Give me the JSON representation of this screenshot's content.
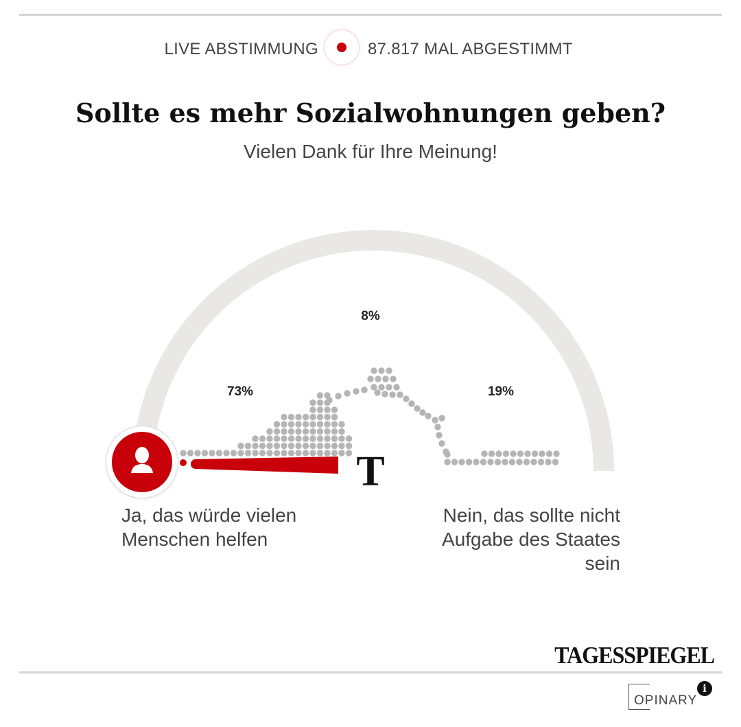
{
  "header": {
    "live_label": "LIVE ABSTIMMUNG",
    "votes_label": "87.817 MAL ABGESTIMMT"
  },
  "question": "Sollte es mehr Sozialwohnungen geben?",
  "subtitle": "Vielen Dank für Ihre Meinung!",
  "meter": {
    "results": [
      {
        "id": "left",
        "percent_label": "73%",
        "value": 73
      },
      {
        "id": "middle",
        "percent_label": "8%",
        "value": 8
      },
      {
        "id": "right",
        "percent_label": "19%",
        "value": 19
      }
    ],
    "center_marker": "T",
    "user_position": 0.42
  },
  "answers": {
    "left": "Ja, das würde vielen Menschen helfen",
    "right": "Nein, das sollte nicht Aufgabe des Staates sein"
  },
  "icons": {
    "live": "record-dot-icon",
    "user": "user-avatar-icon",
    "info": "info-icon"
  },
  "colors": {
    "accent": "#c8000a",
    "arc": "#e9e8e4",
    "dots": "#b5b5b5"
  },
  "footer": {
    "brand": "TAGESSPIEGEL",
    "provider": "OPINARY",
    "info_glyph": "i"
  }
}
